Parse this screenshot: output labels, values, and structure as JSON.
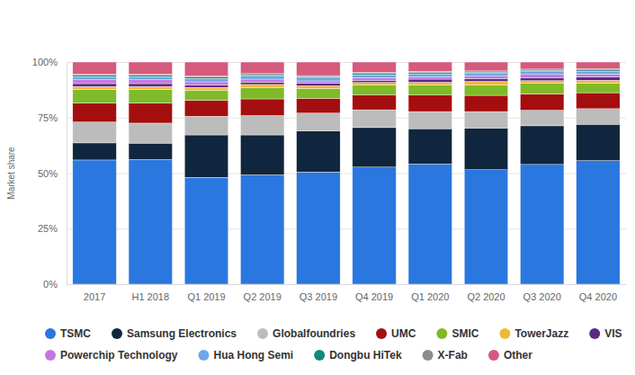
{
  "chart_data": {
    "type": "bar",
    "stacked": true,
    "grid": true,
    "legend": "bottom",
    "y_label": "Market share",
    "categories": [
      "2017",
      "H1 2018",
      "Q1 2019",
      "Q2 2019",
      "Q3 2019",
      "Q4 2019",
      "Q1 2020",
      "Q2 2020",
      "Q3 2020",
      "Q4 2020"
    ],
    "ylim": [
      0,
      100
    ],
    "yticks": [
      {
        "value": 0,
        "label": "0%"
      },
      {
        "value": 25,
        "label": "25%"
      },
      {
        "value": 50,
        "label": "50%"
      },
      {
        "value": 75,
        "label": "75%"
      },
      {
        "value": 100,
        "label": "100%"
      }
    ],
    "series": [
      {
        "name": "TSMC",
        "color": "#2b77e0",
        "values": [
          55.9,
          56.1,
          48.1,
          49.2,
          50.5,
          52.7,
          54.1,
          51.5,
          53.9,
          55.6
        ]
      },
      {
        "name": "Samsung Electronics",
        "color": "#10263f",
        "values": [
          7.7,
          7.4,
          19.1,
          18.0,
          18.5,
          17.8,
          15.9,
          18.8,
          17.4,
          16.4
        ]
      },
      {
        "name": "Globalfoundries",
        "color": "#bcbcbc",
        "values": [
          9.4,
          9.0,
          8.4,
          8.7,
          8.0,
          8.0,
          7.7,
          7.4,
          7.0,
          7.0
        ]
      },
      {
        "name": "UMC",
        "color": "#a50e0e",
        "values": [
          8.5,
          9.0,
          7.2,
          7.5,
          6.7,
          6.8,
          7.4,
          7.3,
          7.3,
          7.2
        ]
      },
      {
        "name": "SMIC",
        "color": "#7fba28",
        "values": [
          6.1,
          6.1,
          4.5,
          5.1,
          4.4,
          4.3,
          4.5,
          4.8,
          4.8,
          4.3
        ]
      },
      {
        "name": "TowerJazz",
        "color": "#f2b735",
        "values": [
          1.4,
          1.4,
          1.3,
          1.4,
          1.2,
          1.2,
          1.3,
          1.5,
          1.2,
          1.3
        ]
      },
      {
        "name": "VIS",
        "color": "#5a2a83",
        "values": [
          1.3,
          1.3,
          1.1,
          1.1,
          1.1,
          1.0,
          1.4,
          1.3,
          1.4,
          1.5
        ]
      },
      {
        "name": "Powerchip Technology",
        "color": "#c377e0",
        "values": [
          1.7,
          1.7,
          1.4,
          1.3,
          1.1,
          1.1,
          1.0,
          1.0,
          1.4,
          1.3
        ]
      },
      {
        "name": "Hua Hong Semi",
        "color": "#6ea6e8",
        "values": [
          1.4,
          1.4,
          1.5,
          1.4,
          1.3,
          1.3,
          1.4,
          1.3,
          1.3,
          1.2
        ]
      },
      {
        "name": "Dongbu HiTek",
        "color": "#118b7b",
        "values": [
          0.6,
          0.6,
          0.6,
          0.6,
          0.6,
          0.6,
          0.6,
          0.6,
          0.6,
          0.6
        ]
      },
      {
        "name": "X-Fab",
        "color": "#8c8c8c",
        "values": [
          0.5,
          0.5,
          0.5,
          0.5,
          0.5,
          0.5,
          0.5,
          0.5,
          0.5,
          0.5
        ]
      },
      {
        "name": "Other",
        "color": "#d65a7d",
        "values": [
          5.5,
          5.5,
          6.3,
          5.2,
          6.1,
          4.7,
          4.2,
          4.0,
          3.2,
          3.1
        ]
      }
    ]
  }
}
